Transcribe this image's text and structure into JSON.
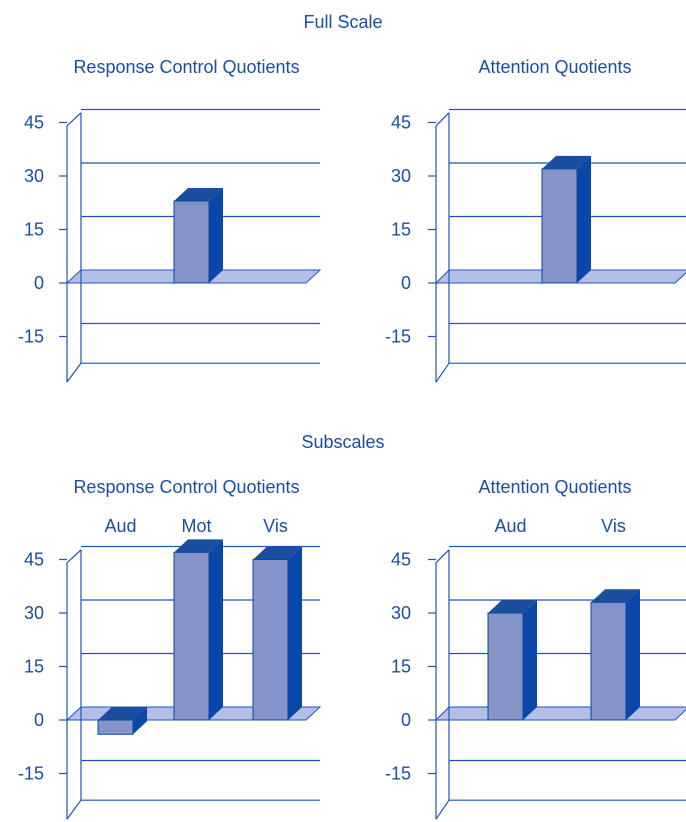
{
  "colors": {
    "text": "#1a4fa0",
    "axis": "#1f55b8",
    "floor": "#b3bfe6",
    "bar_front": "#8693c9",
    "bar_top": "#1a4fa0",
    "bar_side": "#0a47a8"
  },
  "sections": {
    "full_scale": "Full Scale",
    "subscales": "Subscales"
  },
  "chart_data": [
    {
      "type": "bar",
      "section": "Full Scale",
      "title": "Response Control Quotients",
      "categories": [
        ""
      ],
      "values": [
        23
      ],
      "ylim": [
        -25,
        48
      ],
      "yticks": [
        "45",
        "30",
        "15",
        "0",
        "-15"
      ],
      "grid": true
    },
    {
      "type": "bar",
      "section": "Full Scale",
      "title": "Attention Quotients",
      "categories": [
        ""
      ],
      "values": [
        32
      ],
      "ylim": [
        -25,
        48
      ],
      "yticks": [
        "45",
        "30",
        "15",
        "0",
        "-15"
      ],
      "grid": true
    },
    {
      "type": "bar",
      "section": "Subscales",
      "title": "Response Control Quotients",
      "categories": [
        "Aud",
        "Mot",
        "Vis"
      ],
      "values": [
        -4,
        47,
        45
      ],
      "ylim": [
        -25,
        48
      ],
      "yticks": [
        "45",
        "30",
        "15",
        "0",
        "-15"
      ],
      "grid": true
    },
    {
      "type": "bar",
      "section": "Subscales",
      "title": "Attention Quotients",
      "categories": [
        "Aud",
        "Vis"
      ],
      "values": [
        30,
        33
      ],
      "ylim": [
        -25,
        48
      ],
      "yticks": [
        "45",
        "30",
        "15",
        "0",
        "-15"
      ],
      "grid": true
    }
  ]
}
